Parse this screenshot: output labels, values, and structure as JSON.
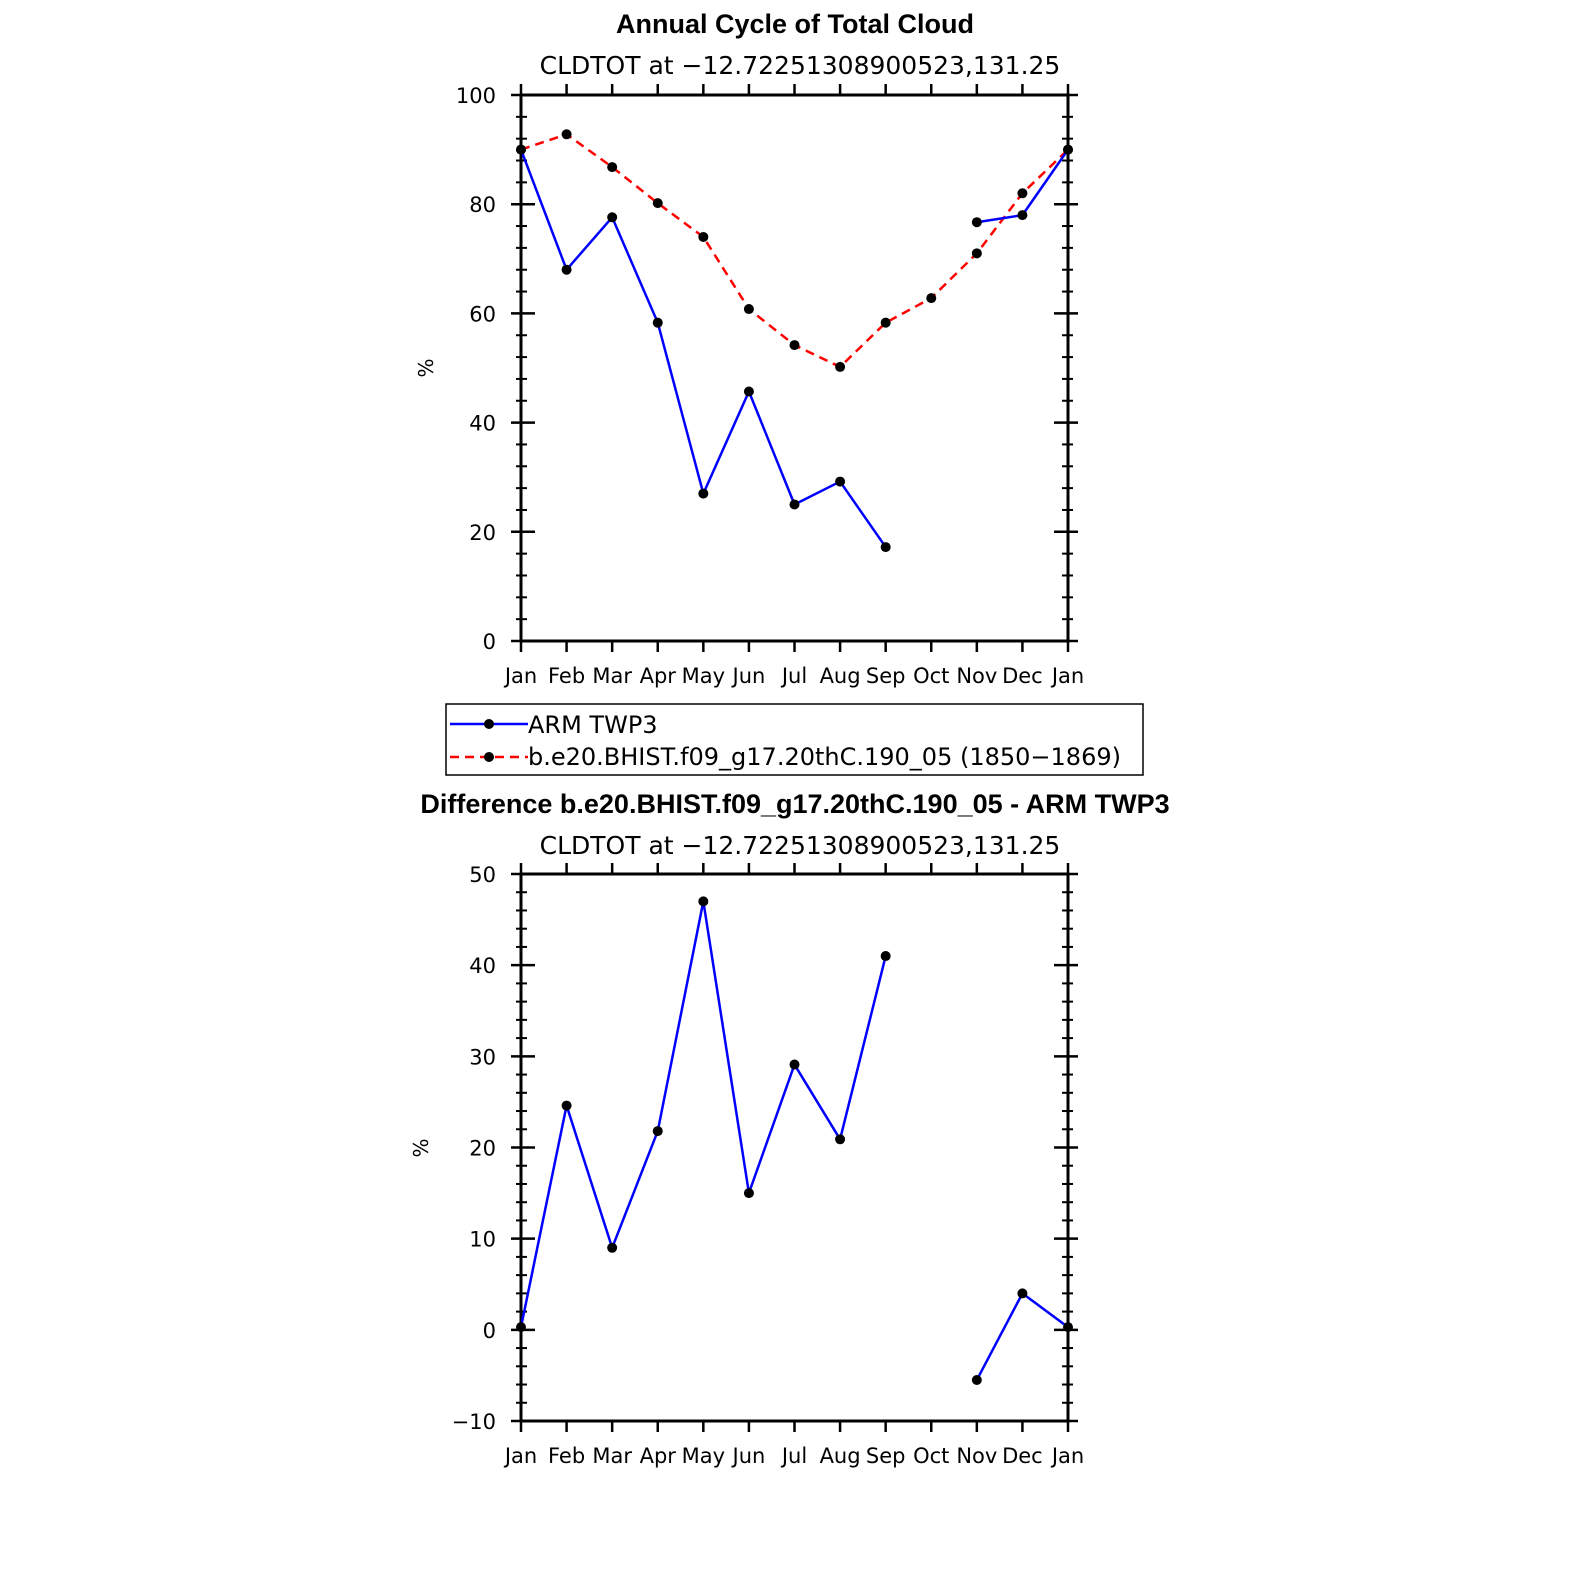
{
  "colors": {
    "obs": "#0000ff",
    "model": "#ff0000",
    "marker": "#000000",
    "axis": "#000000"
  },
  "legend": {
    "entries": [
      {
        "label": "ARM TWP3",
        "color": "#0000ff",
        "dash": "solid"
      },
      {
        "label": "b.e20.BHIST.f09_g17.20thC.190_05 (1850−1869)",
        "color": "#ff0000",
        "dash": "dashed"
      }
    ]
  },
  "chart_data": [
    {
      "type": "line",
      "title": "Annual Cycle of Total Cloud",
      "subtitle": "CLDTOT at −12.72251308900523,131.25",
      "ylabel": "%",
      "xlabel": "",
      "categories": [
        "Jan",
        "Feb",
        "Mar",
        "Apr",
        "May",
        "Jun",
        "Jul",
        "Aug",
        "Sep",
        "Oct",
        "Nov",
        "Dec",
        "Jan"
      ],
      "ylim": [
        0,
        100
      ],
      "yticks": [
        0,
        20,
        40,
        60,
        80,
        100
      ],
      "yticklabels": [
        "0",
        "20",
        "40",
        "60",
        "80",
        "100"
      ],
      "series": [
        {
          "name": "ARM TWP3",
          "color": "#0000ff",
          "dash": "solid",
          "values": [
            90,
            68,
            77.6,
            58.3,
            27,
            45.7,
            25,
            29.2,
            17.2,
            null,
            76.7,
            78,
            90
          ]
        },
        {
          "name": "b.e20.BHIST.f09_g17.20thC.190_05 (1850−1869)",
          "color": "#ff0000",
          "dash": "dashed",
          "values": [
            90,
            92.8,
            86.8,
            80.2,
            74,
            60.8,
            54.2,
            50.2,
            58.3,
            62.8,
            71,
            82,
            90
          ]
        }
      ]
    },
    {
      "type": "line",
      "title": "Difference b.e20.BHIST.f09_g17.20thC.190_05 - ARM TWP3",
      "subtitle": "CLDTOT at −12.72251308900523,131.25",
      "ylabel": "%",
      "xlabel": "",
      "categories": [
        "Jan",
        "Feb",
        "Mar",
        "Apr",
        "May",
        "Jun",
        "Jul",
        "Aug",
        "Sep",
        "Oct",
        "Nov",
        "Dec",
        "Jan"
      ],
      "ylim": [
        -10,
        50
      ],
      "yticks": [
        -10,
        0,
        10,
        20,
        30,
        40,
        50
      ],
      "yticklabels": [
        "−10",
        "0",
        "10",
        "20",
        "30",
        "40",
        "50"
      ],
      "series": [
        {
          "name": "",
          "color": "#0000ff",
          "dash": "solid",
          "values": [
            0.3,
            24.6,
            9,
            21.8,
            47,
            15,
            29.1,
            20.9,
            41,
            null,
            -5.5,
            4,
            0.3
          ]
        }
      ]
    }
  ]
}
